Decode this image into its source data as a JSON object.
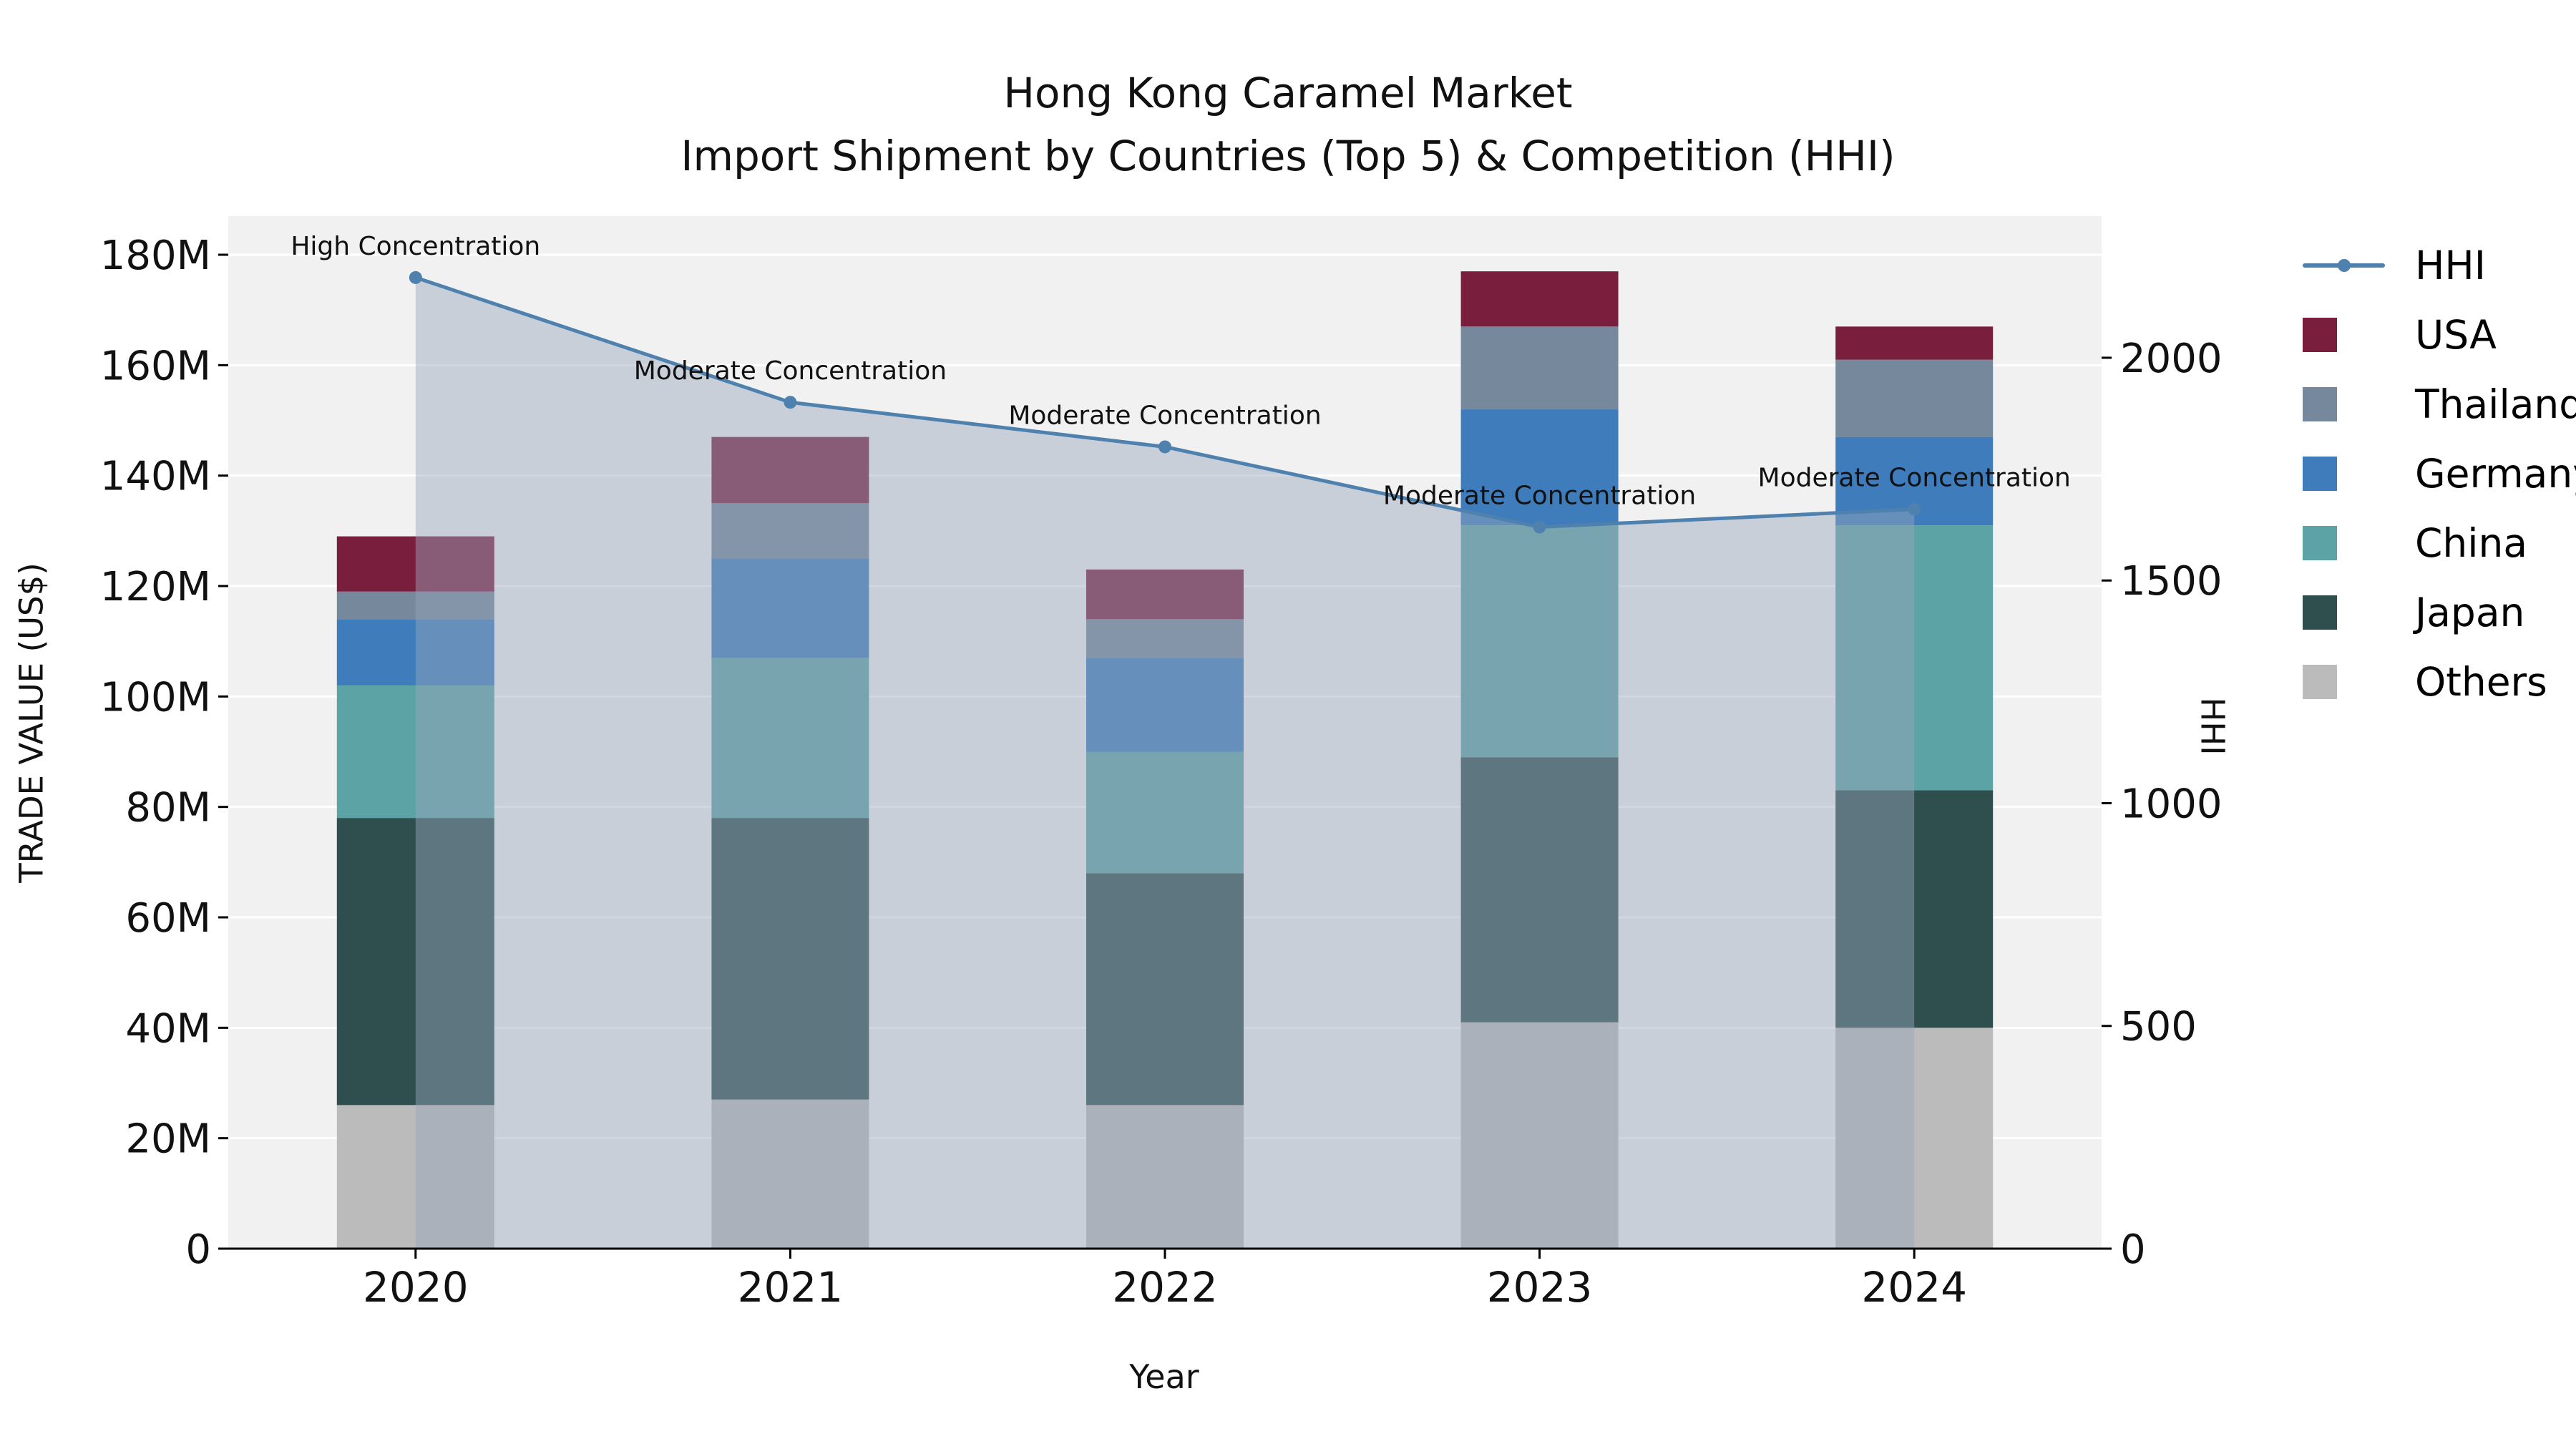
{
  "title": {
    "line1": "Hong Kong Caramel Market",
    "line2": "Import Shipment by Countries (Top 5) & Competition (HHI)"
  },
  "axes": {
    "y_left_label": "TRADE VALUE (US$)",
    "y_right_label": "HHI",
    "x_label": "Year"
  },
  "chart_data": {
    "type": "bar",
    "subtype": "stacked-bar-with-line",
    "title": "Hong Kong Caramel Market — Import Shipment by Countries (Top 5) & Competition (HHI)",
    "xlabel": "Year",
    "ylabel_left": "TRADE VALUE (US$)",
    "ylabel_right": "HHI",
    "value_unit": "US$ (millions)",
    "plot_background": "#F1F1F1",
    "grid_color": "#FFFFFF",
    "categories": [
      "2020",
      "2021",
      "2022",
      "2023",
      "2024"
    ],
    "left_axis": {
      "max": 187,
      "tick_values": [
        0,
        20,
        40,
        60,
        80,
        100,
        120,
        140,
        160,
        180
      ],
      "tick_labels": [
        "0",
        "20M",
        "40M",
        "60M",
        "80M",
        "100M",
        "120M",
        "140M",
        "160M",
        "180M"
      ]
    },
    "right_axis": {
      "max": 2318,
      "tick_values": [
        0,
        500,
        1000,
        1500,
        2000
      ],
      "tick_labels": [
        "0",
        "500",
        "1000",
        "1500",
        "2000"
      ]
    },
    "stack_order_bottom_to_top": [
      "Others",
      "Japan",
      "China",
      "Germany",
      "Thailand",
      "USA"
    ],
    "series": [
      {
        "name": "USA",
        "color": "#7A1E3E",
        "values": [
          10,
          12,
          9,
          10,
          6
        ]
      },
      {
        "name": "Thailand",
        "color": "#76889C",
        "values": [
          5,
          10,
          7,
          15,
          14
        ]
      },
      {
        "name": "Germany",
        "color": "#3E7CBC",
        "values": [
          12,
          18,
          17,
          21,
          16
        ]
      },
      {
        "name": "China",
        "color": "#5BA3A5",
        "values": [
          24,
          29,
          22,
          42,
          48
        ]
      },
      {
        "name": "Japan",
        "color": "#2F4F4F",
        "values": [
          52,
          51,
          42,
          48,
          43
        ]
      },
      {
        "name": "Others",
        "color": "#BBBBBB",
        "values": [
          26,
          27,
          26,
          41,
          40
        ]
      }
    ],
    "line_series": {
      "name": "HHI",
      "axis": "right",
      "color": "#4E81AE",
      "area_fill": "rgba(152,166,186,0.45)",
      "values": [
        2180,
        1900,
        1800,
        1620,
        1660
      ]
    },
    "annotations": [
      {
        "category": "2020",
        "text": "High Concentration"
      },
      {
        "category": "2021",
        "text": "Moderate Concentration"
      },
      {
        "category": "2022",
        "text": "Moderate Concentration"
      },
      {
        "category": "2023",
        "text": "Moderate Concentration"
      },
      {
        "category": "2024",
        "text": "Moderate Concentration"
      }
    ]
  },
  "legend": [
    {
      "label": "HHI",
      "type": "line",
      "color": "#4E81AE"
    },
    {
      "label": "USA",
      "type": "swatch",
      "color": "#7A1E3E"
    },
    {
      "label": "Thailand",
      "type": "swatch",
      "color": "#76889C"
    },
    {
      "label": "Germany",
      "type": "swatch",
      "color": "#3E7CBC"
    },
    {
      "label": "China",
      "type": "swatch",
      "color": "#5BA3A5"
    },
    {
      "label": "Japan",
      "type": "swatch",
      "color": "#2F4F4F"
    },
    {
      "label": "Others",
      "type": "swatch",
      "color": "#BBBBBB"
    }
  ]
}
